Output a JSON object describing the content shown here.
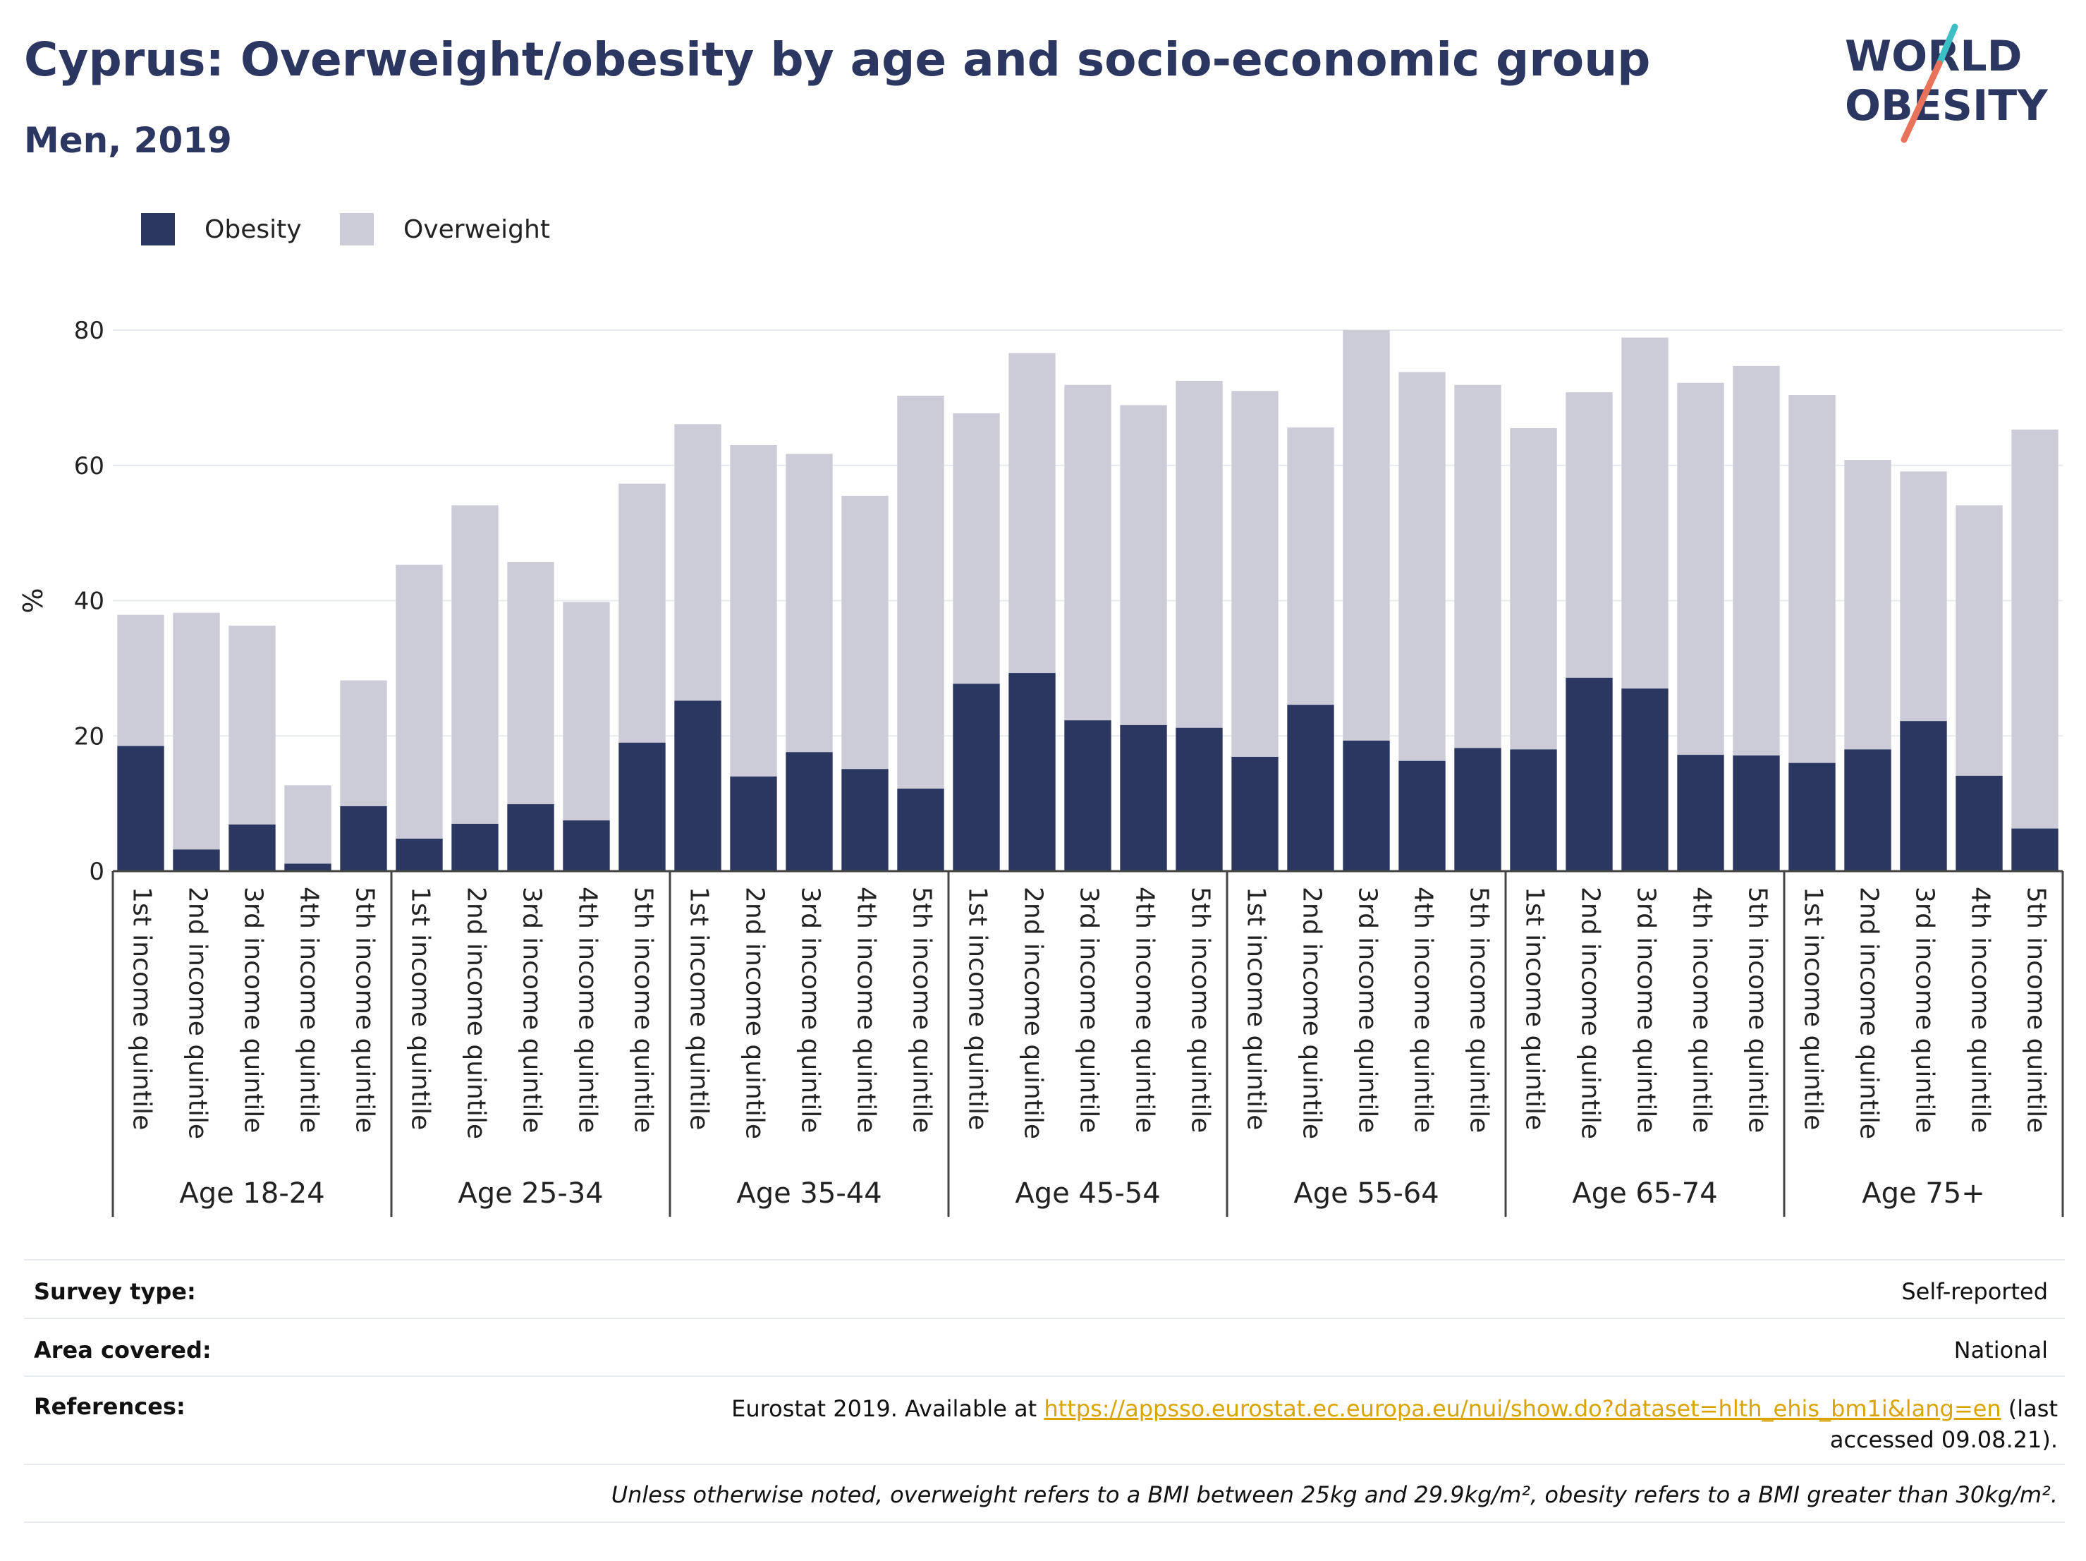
{
  "header": {
    "title": "Cyprus: Overweight/obesity by age and socio-economic group",
    "subtitle": "Men, 2019"
  },
  "logo": {
    "line1": "WORLD",
    "line2": "OBESITY"
  },
  "colors": {
    "obesity": "#2b3661",
    "overweight": "#cbccd8",
    "grid": "#e6e9ee",
    "axis": "#444444",
    "accent_teal": "#3bbfc5",
    "accent_coral": "#e8735a"
  },
  "chart_data": {
    "type": "bar",
    "stacked": true,
    "ylabel": "%",
    "ylim": [
      0,
      80
    ],
    "yticks": [
      0,
      20,
      40,
      60,
      80
    ],
    "grid": true,
    "legend_position": "top-left",
    "legend": [
      "Obesity",
      "Overweight"
    ],
    "groups": [
      "Age 18-24",
      "Age 25-34",
      "Age 35-44",
      "Age 45-54",
      "Age 55-64",
      "Age 65-74",
      "Age 75+"
    ],
    "categories": [
      "1st income quintile",
      "2nd income quintile",
      "3rd income quintile",
      "4th income quintile",
      "5th income quintile"
    ],
    "series": [
      {
        "name": "Obesity",
        "values": [
          [
            18.5,
            3.2,
            6.9,
            1.1,
            9.6
          ],
          [
            4.8,
            7.0,
            9.9,
            7.5,
            19.0
          ],
          [
            25.2,
            14.0,
            17.6,
            15.1,
            12.2
          ],
          [
            27.7,
            29.3,
            22.3,
            21.6,
            21.2
          ],
          [
            16.9,
            24.6,
            19.3,
            16.3,
            18.2
          ],
          [
            18.0,
            28.6,
            27.0,
            17.2,
            17.1
          ],
          [
            16.0,
            18.0,
            22.2,
            14.1,
            6.3
          ]
        ]
      },
      {
        "name": "Overweight",
        "values": [
          [
            19.4,
            35.0,
            29.4,
            11.6,
            18.6
          ],
          [
            40.5,
            47.1,
            35.8,
            32.3,
            38.3
          ],
          [
            40.9,
            49.0,
            44.1,
            40.4,
            58.1
          ],
          [
            40.0,
            47.3,
            49.6,
            47.3,
            51.3
          ],
          [
            54.1,
            41.0,
            60.7,
            57.5,
            53.7
          ],
          [
            47.5,
            42.2,
            51.9,
            55.0,
            57.6
          ],
          [
            54.4,
            42.8,
            36.9,
            40.0,
            59.0
          ]
        ]
      }
    ]
  },
  "meta": {
    "survey_type_label": "Survey type:",
    "survey_type_value": "Self-reported",
    "area_label": "Area covered:",
    "area_value": "National",
    "references_label": "References:",
    "references_prefix": "Eurostat 2019. Available at ",
    "references_link": "https://appsso.eurostat.ec.europa.eu/nui/show.do?dataset=hlth_ehis_bm1i&lang=en",
    "references_suffix": " (last accessed 09.08.21).",
    "note": "Unless otherwise noted, overweight refers to a BMI between 25kg and 29.9kg/m², obesity refers to a BMI greater than 30kg/m²."
  }
}
